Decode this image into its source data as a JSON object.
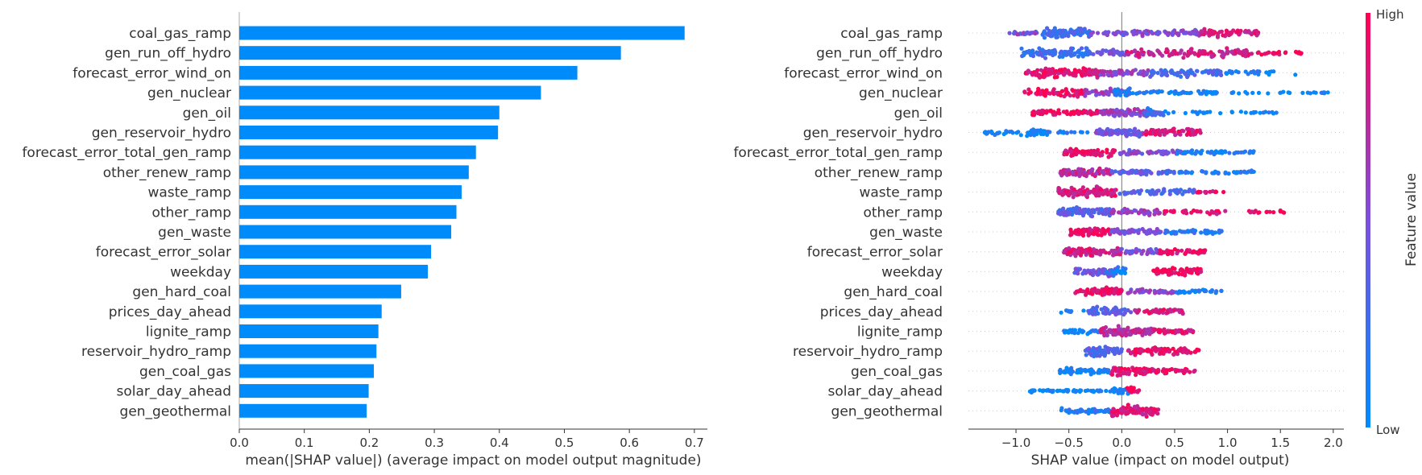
{
  "chart_data": [
    {
      "type": "bar",
      "orientation": "horizontal",
      "xlabel": "mean(|SHAP value|) (average impact on model output magnitude)",
      "xlim": [
        0.0,
        0.72
      ],
      "xticks": [
        0.0,
        0.1,
        0.2,
        0.3,
        0.4,
        0.5,
        0.6,
        0.7
      ],
      "xtick_labels": [
        "0.0",
        "0.1",
        "0.2",
        "0.3",
        "0.4",
        "0.5",
        "0.6",
        "0.7"
      ],
      "grid": false,
      "bar_color": "#008bfb",
      "categories": [
        "coal_gas_ramp",
        "gen_run_off_hydro",
        "forecast_error_wind_on",
        "gen_nuclear",
        "gen_oil",
        "gen_reservoir_hydro",
        "forecast_error_total_gen_ramp",
        "other_renew_ramp",
        "waste_ramp",
        "other_ramp",
        "gen_waste",
        "forecast_error_solar",
        "weekday",
        "gen_hard_coal",
        "prices_day_ahead",
        "lignite_ramp",
        "reservoir_hydro_ramp",
        "gen_coal_gas",
        "solar_day_ahead",
        "gen_geothermal"
      ],
      "values": [
        0.685,
        0.587,
        0.52,
        0.464,
        0.4,
        0.398,
        0.364,
        0.353,
        0.342,
        0.334,
        0.326,
        0.295,
        0.29,
        0.249,
        0.219,
        0.214,
        0.211,
        0.207,
        0.199,
        0.196
      ]
    },
    {
      "type": "scatter",
      "subtype": "beeswarm",
      "xlabel": "SHAP value (impact on model output)",
      "xlim": [
        -1.45,
        2.1
      ],
      "xticks": [
        -1.0,
        -0.5,
        0.0,
        0.5,
        1.0,
        1.5,
        2.0
      ],
      "xtick_labels": [
        "−1.0",
        "−0.5",
        "0.0",
        "0.5",
        "1.0",
        "1.5",
        "2.0"
      ],
      "grid": false,
      "colorbar": {
        "label": "Feature value",
        "high_label": "High",
        "low_label": "Low",
        "low_color": "#008bfb",
        "high_color": "#ff0052"
      },
      "features": [
        {
          "name": "coal_gas_ramp",
          "clusters": [
            [
              -1.1,
              -0.75,
              25,
              0.5,
              3
            ],
            [
              -0.75,
              -0.3,
              90,
              0.25,
              8
            ],
            [
              -0.3,
              0.05,
              25,
              0.5,
              4
            ],
            [
              0.1,
              0.75,
              70,
              0.55,
              5
            ],
            [
              0.75,
              1.3,
              55,
              0.85,
              6
            ]
          ]
        },
        {
          "name": "gen_run_off_hydro",
          "clusters": [
            [
              -0.95,
              -0.3,
              90,
              0.25,
              8
            ],
            [
              -0.3,
              0.05,
              35,
              0.45,
              5
            ],
            [
              0.05,
              1.2,
              120,
              0.8,
              7
            ],
            [
              1.2,
              1.72,
              25,
              0.92,
              3
            ]
          ]
        },
        {
          "name": "forecast_error_wind_on",
          "clusters": [
            [
              -0.92,
              -0.2,
              110,
              0.9,
              8
            ],
            [
              -0.2,
              0.25,
              45,
              0.6,
              5
            ],
            [
              0.25,
              0.95,
              70,
              0.3,
              6
            ],
            [
              0.95,
              1.65,
              25,
              0.08,
              3
            ]
          ]
        },
        {
          "name": "gen_nuclear",
          "clusters": [
            [
              -0.92,
              -0.35,
              60,
              0.95,
              6
            ],
            [
              -0.35,
              0.05,
              40,
              0.6,
              6
            ],
            [
              -0.1,
              0.1,
              25,
              0.15,
              8
            ],
            [
              0.1,
              0.9,
              50,
              0.08,
              3
            ],
            [
              1.0,
              1.95,
              25,
              0.03,
              2
            ]
          ]
        },
        {
          "name": "gen_oil",
          "clusters": [
            [
              -0.85,
              -0.2,
              70,
              0.92,
              5
            ],
            [
              -0.2,
              0.3,
              80,
              0.6,
              6
            ],
            [
              0.2,
              0.4,
              30,
              0.25,
              7
            ],
            [
              0.4,
              1.5,
              30,
              0.05,
              2
            ]
          ]
        },
        {
          "name": "gen_reservoir_hydro",
          "clusters": [
            [
              -1.3,
              -0.7,
              40,
              0.05,
              4
            ],
            [
              -0.9,
              -0.7,
              20,
              0.05,
              6
            ],
            [
              -0.7,
              -0.3,
              15,
              0.1,
              2
            ],
            [
              -0.25,
              0.2,
              80,
              0.45,
              6
            ],
            [
              0.2,
              0.75,
              70,
              0.85,
              6
            ]
          ]
        },
        {
          "name": "forecast_error_total_gen_ramp",
          "clusters": [
            [
              -0.55,
              -0.05,
              80,
              0.9,
              6
            ],
            [
              -0.05,
              0.6,
              60,
              0.5,
              4
            ],
            [
              0.5,
              1.25,
              50,
              0.08,
              3
            ]
          ]
        },
        {
          "name": "other_renew_ramp",
          "clusters": [
            [
              -0.58,
              -0.1,
              80,
              0.75,
              6
            ],
            [
              -0.1,
              0.5,
              60,
              0.4,
              4
            ],
            [
              0.4,
              1.25,
              45,
              0.15,
              3
            ]
          ]
        },
        {
          "name": "waste_ramp",
          "clusters": [
            [
              -0.6,
              -0.05,
              120,
              0.85,
              8
            ],
            [
              -0.05,
              0.7,
              60,
              0.3,
              5
            ],
            [
              0.7,
              0.98,
              15,
              0.9,
              2
            ]
          ]
        },
        {
          "name": "other_ramp",
          "clusters": [
            [
              -0.6,
              -0.1,
              90,
              0.35,
              7
            ],
            [
              -0.1,
              0.4,
              50,
              0.6,
              5
            ],
            [
              0.4,
              1.0,
              30,
              0.9,
              3
            ],
            [
              1.2,
              1.55,
              15,
              0.95,
              3
            ]
          ]
        },
        {
          "name": "gen_waste",
          "clusters": [
            [
              -0.5,
              -0.1,
              70,
              0.92,
              7
            ],
            [
              -0.1,
              0.4,
              60,
              0.5,
              5
            ],
            [
              0.4,
              0.98,
              50,
              0.15,
              4
            ]
          ]
        },
        {
          "name": "forecast_error_solar",
          "clusters": [
            [
              -0.55,
              0.0,
              100,
              0.8,
              7
            ],
            [
              0.0,
              0.35,
              40,
              0.5,
              5
            ],
            [
              0.35,
              0.8,
              50,
              0.9,
              4
            ]
          ]
        },
        {
          "name": "weekday",
          "clusters": [
            [
              -0.45,
              -0.05,
              60,
              0.45,
              7
            ],
            [
              -0.15,
              0.05,
              20,
              0.08,
              6
            ],
            [
              0.3,
              0.75,
              70,
              0.95,
              6
            ]
          ]
        },
        {
          "name": "gen_hard_coal",
          "clusters": [
            [
              -0.45,
              0.0,
              70,
              0.95,
              6
            ],
            [
              0.0,
              0.5,
              40,
              0.55,
              4
            ],
            [
              0.5,
              0.95,
              30,
              0.08,
              3
            ]
          ]
        },
        {
          "name": "prices_day_ahead",
          "clusters": [
            [
              -0.6,
              -0.3,
              10,
              0.05,
              3
            ],
            [
              -0.35,
              0.1,
              50,
              0.35,
              7
            ],
            [
              0.1,
              0.58,
              50,
              0.85,
              5
            ]
          ]
        },
        {
          "name": "lignite_ramp",
          "clusters": [
            [
              -0.55,
              -0.15,
              35,
              0.1,
              4
            ],
            [
              -0.2,
              0.3,
              90,
              0.75,
              8
            ],
            [
              0.3,
              0.7,
              40,
              0.9,
              4
            ]
          ]
        },
        {
          "name": "reservoir_hydro_ramp",
          "clusters": [
            [
              -0.35,
              0.0,
              60,
              0.35,
              8
            ],
            [
              0.05,
              0.75,
              90,
              0.9,
              6
            ]
          ]
        },
        {
          "name": "gen_coal_gas",
          "clusters": [
            [
              -0.6,
              -0.1,
              60,
              0.08,
              5
            ],
            [
              -0.1,
              0.25,
              70,
              0.9,
              7
            ],
            [
              0.25,
              0.72,
              40,
              0.9,
              4
            ]
          ]
        },
        {
          "name": "solar_day_ahead",
          "clusters": [
            [
              -0.9,
              -0.1,
              50,
              0.05,
              2
            ],
            [
              -0.1,
              0.1,
              30,
              0.1,
              6
            ],
            [
              0.05,
              0.17,
              15,
              0.95,
              6
            ]
          ]
        },
        {
          "name": "gen_geothermal",
          "clusters": [
            [
              -0.6,
              -0.1,
              50,
              0.15,
              4
            ],
            [
              -0.1,
              0.35,
              80,
              0.85,
              8
            ]
          ]
        }
      ]
    }
  ]
}
